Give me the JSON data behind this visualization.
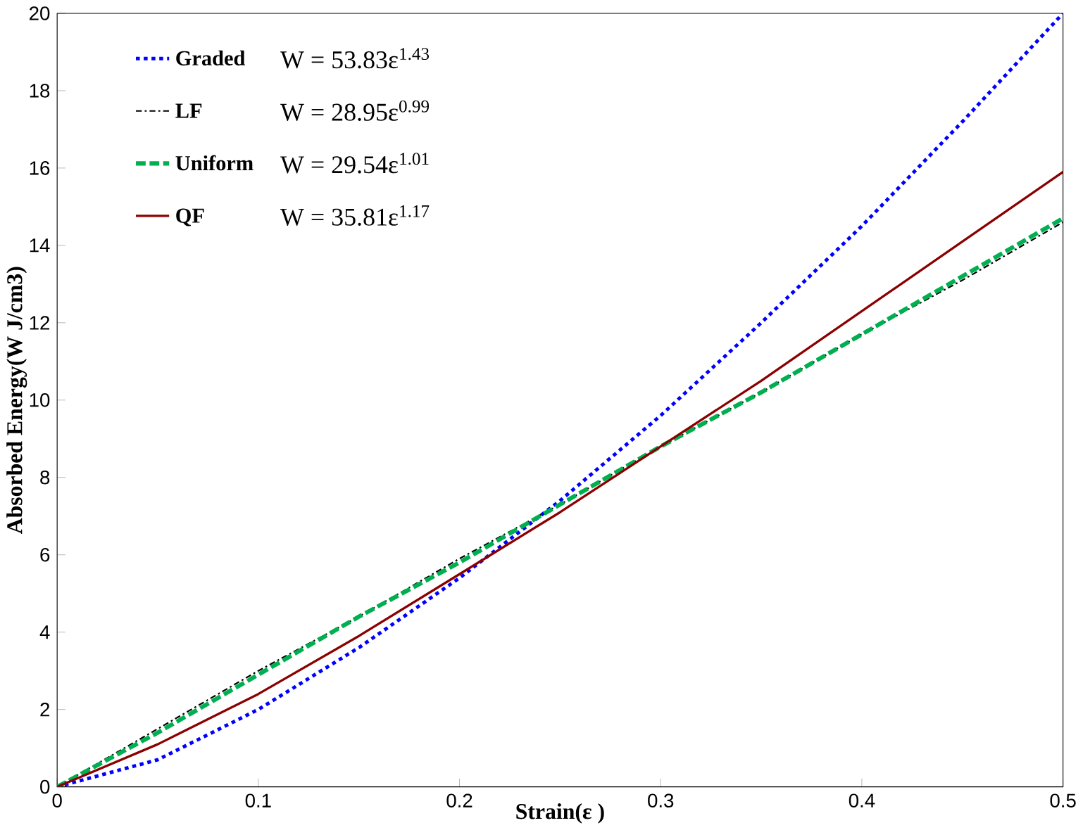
{
  "chart_data": {
    "type": "line",
    "xlabel": "Strain(ε )",
    "ylabel": "Absorbed Energy(W J/cm3)",
    "x": [
      0,
      0.05,
      0.1,
      0.15,
      0.2,
      0.25,
      0.3,
      0.35,
      0.4,
      0.45,
      0.5
    ],
    "xlim": [
      0,
      0.5
    ],
    "xticks": [
      0,
      0.1,
      0.2,
      0.3,
      0.4,
      0.5
    ],
    "ylim": [
      0,
      20
    ],
    "yticks": [
      0,
      2,
      4,
      6,
      8,
      10,
      12,
      14,
      16,
      18,
      20
    ],
    "series": [
      {
        "name": "Graded",
        "color": "#0000ff",
        "line_style": "dotted",
        "values": [
          0,
          0.7,
          2.0,
          3.6,
          5.4,
          7.4,
          9.6,
          12.0,
          14.5,
          17.2,
          20.0
        ]
      },
      {
        "name": "LF",
        "color": "#000000",
        "line_style": "dashdot",
        "values": [
          0,
          1.5,
          3.0,
          4.4,
          5.9,
          7.3,
          8.8,
          10.2,
          11.7,
          13.1,
          14.6
        ]
      },
      {
        "name": "Uniform",
        "color": "#00b050",
        "line_style": "dashed",
        "values": [
          0,
          1.4,
          2.9,
          4.4,
          5.8,
          7.3,
          8.8,
          10.2,
          11.7,
          13.2,
          14.7
        ]
      },
      {
        "name": "QF",
        "color": "#8b0000",
        "line_style": "solid",
        "values": [
          0,
          1.1,
          2.4,
          3.9,
          5.5,
          7.1,
          8.8,
          10.5,
          12.3,
          14.1,
          15.9
        ]
      }
    ],
    "legend": "top left",
    "annotations": [
      "W = 53.83ε$^{1.43}$",
      "W = 28.95ε$^{0.99}$",
      "W = 29.54ε$^{1.01}$",
      "W = 35.81ε$^{1.17}$"
    ]
  }
}
